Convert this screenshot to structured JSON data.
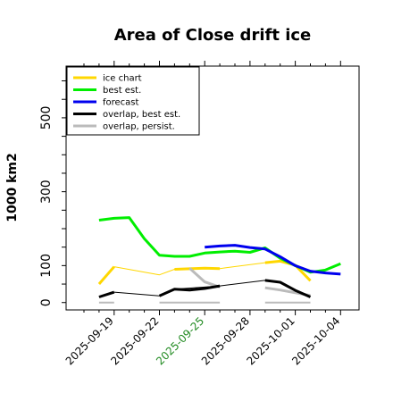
{
  "chart_data": {
    "type": "line",
    "title": "Area of Close drift ice",
    "ylabel": "1000 km2",
    "xlabel": "",
    "ylim": [
      -20,
      640
    ],
    "yticks": [
      0,
      100,
      300,
      500
    ],
    "x_categories": [
      "2025-09-17",
      "2025-09-18",
      "2025-09-19",
      "2025-09-20",
      "2025-09-21",
      "2025-09-22",
      "2025-09-23",
      "2025-09-24",
      "2025-09-25",
      "2025-09-26",
      "2025-09-27",
      "2025-09-28",
      "2025-09-29",
      "2025-09-30",
      "2025-10-01",
      "2025-10-02",
      "2025-10-03",
      "2025-10-04"
    ],
    "xtick_labels": [
      {
        "label": "2025-09-19",
        "color": "#000000"
      },
      {
        "label": "2025-09-22",
        "color": "#000000"
      },
      {
        "label": "2025-09-25",
        "color": "#228B22"
      },
      {
        "label": "2025-09-28",
        "color": "#000000"
      },
      {
        "label": "2025-10-01",
        "color": "#000000"
      },
      {
        "label": "2025-10-04",
        "color": "#000000"
      }
    ],
    "legend": {
      "position": "top-left",
      "entries": [
        {
          "name": "ice chart",
          "color": "#FFD700"
        },
        {
          "name": "best est.",
          "color": "#00EE00"
        },
        {
          "name": "forecast",
          "color": "#0000EE"
        },
        {
          "name": "overlap, best est.",
          "color": "#000000"
        },
        {
          "name": "overlap, persist.",
          "color": "#BBBBBB"
        }
      ]
    },
    "series": [
      {
        "key": "ice_chart_thin",
        "color": "#FFD700",
        "width": 1,
        "points": [
          [
            "2025-09-19",
            97
          ],
          [
            "2025-09-22",
            75
          ],
          [
            "2025-09-23",
            90
          ],
          [
            "2025-09-25",
            93
          ],
          [
            "2025-09-26",
            92
          ],
          [
            "2025-09-29",
            108
          ],
          [
            "2025-09-30",
            112
          ]
        ]
      },
      {
        "key": "ice_chart",
        "color": "#FFD700",
        "width": 3,
        "points": [
          [
            "2025-09-18",
            50
          ],
          [
            "2025-09-19",
            97
          ]
        ]
      },
      {
        "key": "ice_chart_2",
        "color": "#FFD700",
        "width": 3,
        "points": [
          [
            "2025-09-23",
            90
          ],
          [
            "2025-09-25",
            93
          ],
          [
            "2025-09-26",
            92
          ]
        ]
      },
      {
        "key": "ice_chart_3",
        "color": "#FFD700",
        "width": 3,
        "points": [
          [
            "2025-09-29",
            108
          ],
          [
            "2025-09-30",
            112
          ],
          [
            "2025-10-01",
            101
          ],
          [
            "2025-10-02",
            59
          ]
        ]
      },
      {
        "key": "overlap_persist",
        "color": "#BBBBBB",
        "width": 3,
        "points": [
          [
            "2025-09-24",
            93
          ],
          [
            "2025-09-25",
            56
          ],
          [
            "2025-09-26",
            42
          ]
        ]
      },
      {
        "key": "overlap_persist_2",
        "color": "#BBBBBB",
        "width": 3,
        "points": [
          [
            "2025-09-29",
            40
          ],
          [
            "2025-09-30",
            34
          ],
          [
            "2025-10-02",
            19
          ]
        ]
      },
      {
        "key": "overlap_best_thin",
        "color": "#000000",
        "width": 1,
        "points": [
          [
            "2025-09-19",
            28
          ],
          [
            "2025-09-22",
            18
          ],
          [
            "2025-09-23",
            36
          ],
          [
            "2025-09-25",
            42
          ],
          [
            "2025-09-26",
            45
          ],
          [
            "2025-09-29",
            60
          ],
          [
            "2025-09-30",
            55
          ]
        ]
      },
      {
        "key": "overlap_best",
        "color": "#000000",
        "width": 3,
        "points": [
          [
            "2025-09-18",
            15
          ],
          [
            "2025-09-19",
            28
          ]
        ]
      },
      {
        "key": "overlap_best_2",
        "color": "#000000",
        "width": 3,
        "points": [
          [
            "2025-09-22",
            18
          ],
          [
            "2025-09-23",
            36
          ],
          [
            "2025-09-24",
            34
          ],
          [
            "2025-09-25",
            38
          ],
          [
            "2025-09-26",
            45
          ]
        ]
      },
      {
        "key": "overlap_best_3",
        "color": "#000000",
        "width": 3,
        "points": [
          [
            "2025-09-29",
            60
          ],
          [
            "2025-09-30",
            55
          ],
          [
            "2025-10-01",
            33
          ],
          [
            "2025-10-02",
            15
          ]
        ]
      },
      {
        "key": "best_est",
        "color": "#00EE00",
        "width": 3,
        "points": [
          [
            "2025-09-18",
            223
          ],
          [
            "2025-09-19",
            228
          ],
          [
            "2025-09-20",
            230
          ],
          [
            "2025-09-21",
            173
          ],
          [
            "2025-09-22",
            128
          ],
          [
            "2025-09-23",
            125
          ],
          [
            "2025-09-24",
            125
          ],
          [
            "2025-09-25",
            134
          ],
          [
            "2025-09-26",
            137
          ],
          [
            "2025-09-27",
            139
          ],
          [
            "2025-09-28",
            136
          ],
          [
            "2025-09-29",
            148
          ],
          [
            "2025-09-30",
            120
          ],
          [
            "2025-10-01",
            100
          ],
          [
            "2025-10-02",
            82
          ],
          [
            "2025-10-03",
            88
          ],
          [
            "2025-10-04",
            105
          ]
        ]
      },
      {
        "key": "forecast",
        "color": "#0000EE",
        "width": 3,
        "points": [
          [
            "2025-09-25",
            150
          ],
          [
            "2025-09-26",
            153
          ],
          [
            "2025-09-27",
            155
          ],
          [
            "2025-09-28",
            149
          ],
          [
            "2025-09-29",
            145
          ],
          [
            "2025-09-30",
            124
          ],
          [
            "2025-10-01",
            100
          ],
          [
            "2025-10-02",
            85
          ],
          [
            "2025-10-03",
            80
          ],
          [
            "2025-10-04",
            77
          ]
        ]
      }
    ],
    "segments": [
      {
        "color": "#BBBBBB",
        "width": 2,
        "x0": "2025-09-18",
        "x1": "2025-09-19",
        "y": 0
      },
      {
        "color": "#BBBBBB",
        "width": 2,
        "x0": "2025-09-22",
        "x1": "2025-09-26",
        "y": 0
      },
      {
        "color": "#BBBBBB",
        "width": 2,
        "x0": "2025-09-29",
        "x1": "2025-10-02",
        "y": 0
      }
    ]
  }
}
